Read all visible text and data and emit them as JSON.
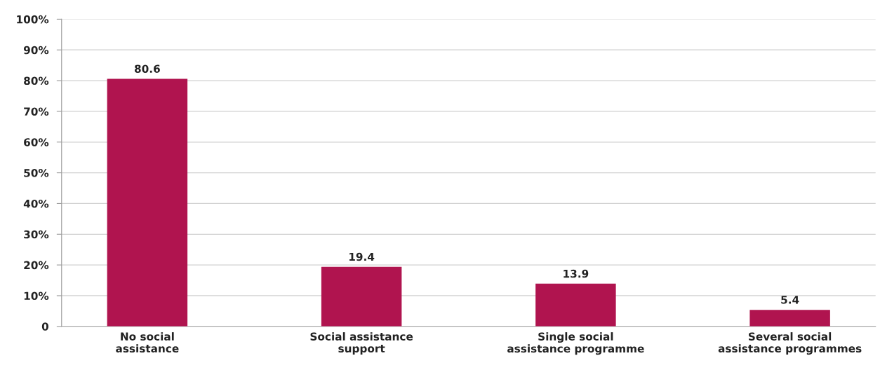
{
  "chart_data": {
    "type": "bar",
    "categories": [
      "No social\nassistance",
      "Social assistance\nsupport",
      "Single social\nassistance programme",
      "Several social\nassistance programmes"
    ],
    "values": [
      80.6,
      19.4,
      13.9,
      5.4
    ],
    "color": "#b0144f",
    "ylim": [
      0,
      100
    ],
    "yticks": [
      0,
      {
        "value": 10,
        "label": "10%"
      },
      {
        "value": 20,
        "label": "20%"
      },
      {
        "value": 30,
        "label": "30%"
      },
      {
        "value": 40,
        "label": "40%"
      },
      {
        "value": 50,
        "label": "50%"
      },
      {
        "value": 60,
        "label": "60%"
      },
      {
        "value": 70,
        "label": "70%"
      },
      {
        "value": 80,
        "label": "80%"
      },
      {
        "value": 90,
        "label": "90%"
      },
      {
        "value": 100,
        "label": "100%"
      }
    ],
    "grid": "y",
    "data_labels": true
  }
}
